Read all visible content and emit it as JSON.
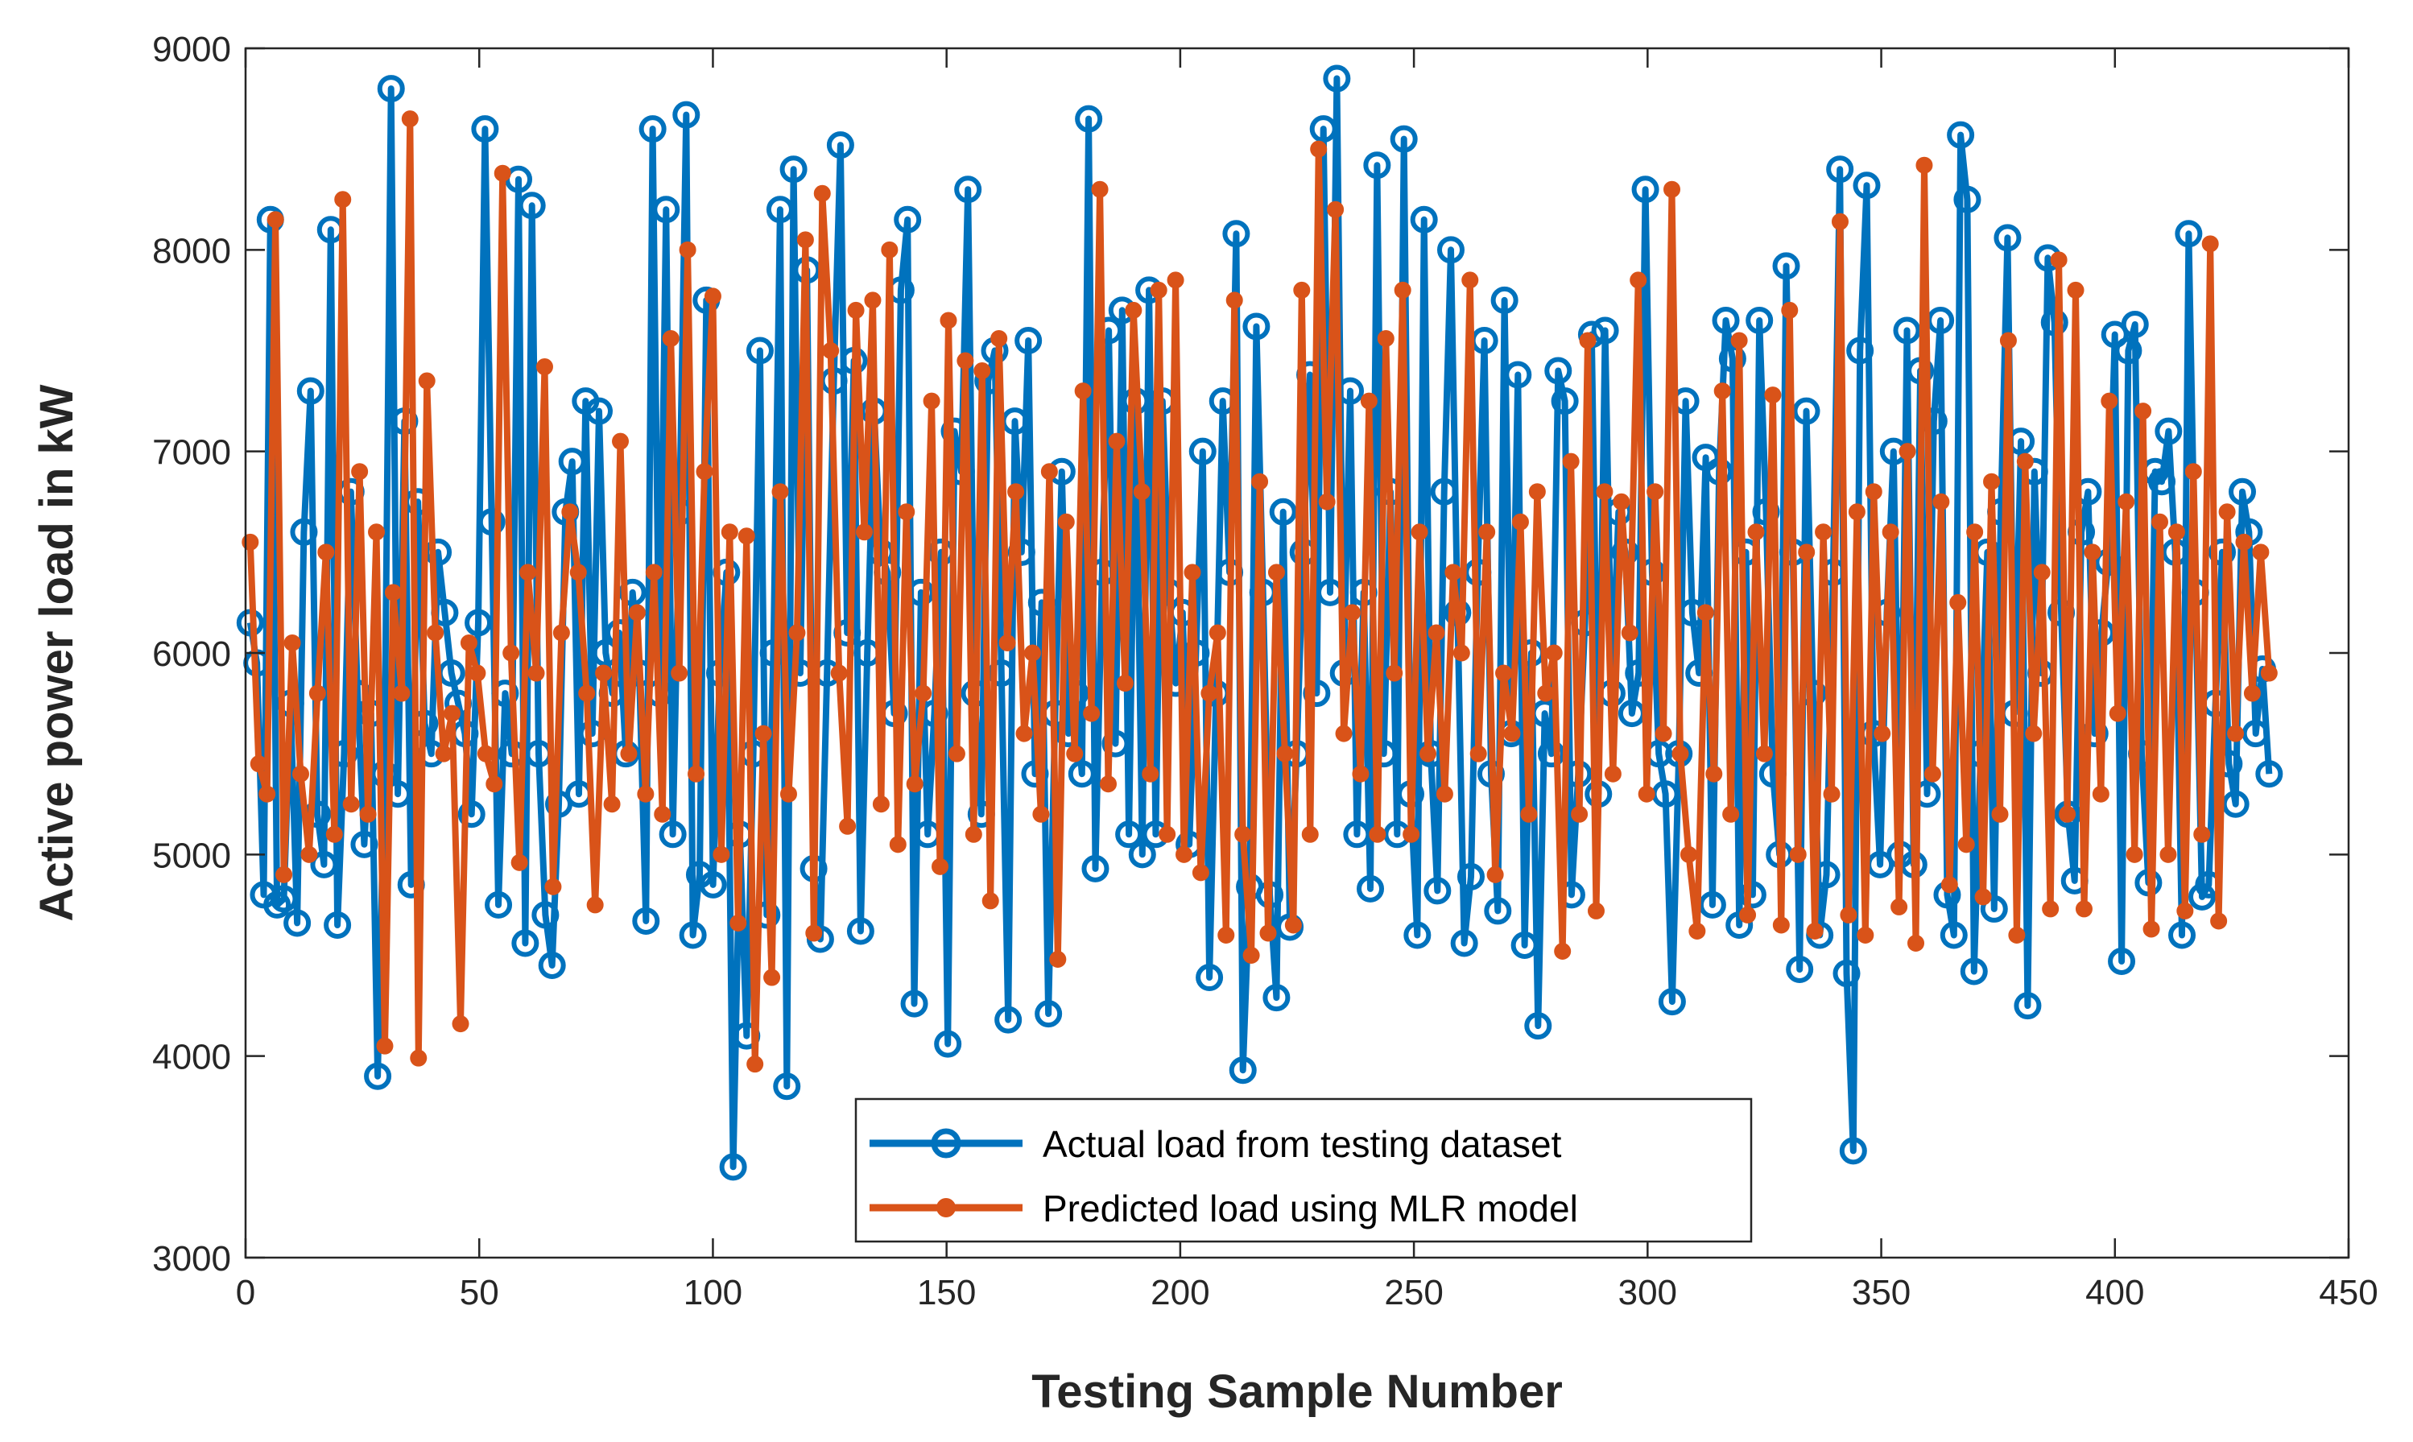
{
  "chart_data": {
    "type": "line",
    "title": "",
    "xlabel": "Testing Sample Number",
    "ylabel": "Active power load in kW",
    "xlim": [
      0,
      450
    ],
    "ylim": [
      3000,
      9000
    ],
    "xticks": [
      0,
      50,
      100,
      150,
      200,
      250,
      300,
      350,
      400,
      450
    ],
    "yticks": [
      3000,
      4000,
      5000,
      6000,
      7000,
      8000,
      9000
    ],
    "grid": false,
    "legend_position": "bottom-center",
    "series": [
      {
        "name": "Actual load from testing dataset",
        "color": "#0072BD",
        "marker": "circle",
        "values": [
          6150,
          5950,
          4800,
          8150,
          4750,
          4780,
          5750,
          4660,
          6600,
          7300,
          5200,
          4950,
          8100,
          4650,
          5500,
          6800,
          5800,
          5050,
          5700,
          3900,
          5400,
          8800,
          5300,
          7150,
          4850,
          6750,
          5650,
          5500,
          6500,
          6200,
          5900,
          5750,
          5600,
          5200,
          6150,
          8600,
          6650,
          4750,
          5800,
          5500,
          8350,
          4560,
          8220,
          5500,
          4700,
          4450,
          5250,
          6700,
          6950,
          5300,
          7250,
          5600,
          7200,
          6000,
          5800,
          6100,
          5500,
          6300,
          5900,
          4670,
          8600,
          5800,
          8200,
          5100,
          6700,
          8670,
          4600,
          4900,
          7750,
          4850,
          5900,
          6400,
          3450,
          5100,
          4100,
          5500,
          7500,
          4700,
          6000,
          8200,
          3850,
          8400,
          5900,
          7900,
          4930,
          4580,
          5900,
          7350,
          8520,
          6100,
          7450,
          4620,
          6000,
          7200,
          6500,
          6400,
          5700,
          7800,
          8150,
          4260,
          6300,
          5100,
          5700,
          6500,
          4060,
          7100,
          6900,
          8300,
          5800,
          5200,
          7350,
          7500,
          5900,
          4180,
          7150,
          6500,
          7550,
          5400,
          6250,
          4210,
          5700,
          6900,
          5600,
          5800,
          5400,
          8650,
          4930,
          6400,
          7600,
          5550,
          7700,
          5100,
          7250,
          5000,
          7800,
          5100,
          7250,
          6300,
          5850,
          6200,
          5050,
          6000,
          7000,
          4390,
          5800,
          7250,
          6400,
          8080,
          3930,
          4840,
          7620,
          6300,
          4800,
          4290,
          6700,
          4640,
          5500,
          6500,
          7380,
          5800,
          8600,
          6300,
          8850,
          5900,
          7300,
          5100,
          6300,
          4830,
          8420,
          5500,
          6800,
          5100,
          8550,
          5300,
          4600,
          8150,
          5500,
          4820,
          6800,
          8000,
          6200,
          4560,
          4890,
          6400,
          7550,
          5400,
          4720,
          7750,
          5600,
          7380,
          4550,
          6000,
          4150,
          5700,
          5500,
          7400,
          7250,
          4800,
          5400,
          6150,
          7580,
          5300,
          7600,
          5800,
          6700,
          6500,
          5700,
          5900,
          8300,
          6400,
          5500,
          5300,
          4270,
          5500,
          7250,
          6200,
          5900,
          6970,
          4750,
          6900,
          7650,
          7460,
          4650,
          6500,
          4800,
          7650,
          6700,
          5400,
          5000,
          7920,
          6500,
          4430,
          7200,
          5800,
          4600,
          4900,
          6400,
          8400,
          4410,
          3530,
          7500,
          8320,
          5600,
          4950,
          6200,
          7000,
          5000,
          7600,
          4950,
          7400,
          5300,
          7150,
          7650,
          4800,
          4600,
          8570,
          8250,
          4420,
          5500,
          6500,
          4730,
          6700,
          8060,
          5700,
          7050,
          4250,
          6900,
          5900,
          7960,
          7640,
          6200,
          5200,
          4870,
          6600,
          6800,
          5600,
          6100,
          6450,
          7580,
          4470,
          7500,
          7630,
          5500,
          4860,
          6900,
          6850,
          7100,
          6500,
          4600,
          8080,
          6300,
          4790,
          4850,
          5750,
          6500,
          5450,
          5250,
          6800,
          6600,
          5600,
          5920,
          5400
        ]
      },
      {
        "name": "Predicted load using MLR model",
        "color": "#D95319",
        "marker": "star",
        "values": [
          6550,
          5450,
          5300,
          8150,
          4900,
          6050,
          5400,
          5000,
          5800,
          6500,
          5100,
          8250,
          5250,
          6900,
          5200,
          6600,
          4050,
          6300,
          5800,
          8650,
          3990,
          7350,
          6100,
          5500,
          5700,
          4160,
          6050,
          5900,
          5500,
          5350,
          8380,
          6000,
          4960,
          6400,
          5900,
          7420,
          4840,
          6100,
          6700,
          6400,
          5800,
          4750,
          5900,
          5250,
          7050,
          5500,
          6200,
          5300,
          6400,
          5200,
          7560,
          5900,
          8000,
          5400,
          6900,
          7770,
          5000,
          6600,
          4660,
          6580,
          3960,
          5600,
          4390,
          6800,
          5300,
          6100,
          8050,
          4610,
          8280,
          7500,
          5900,
          5140,
          7700,
          6600,
          7750,
          5250,
          8000,
          5050,
          6700,
          5350,
          5800,
          7250,
          4940,
          7650,
          5500,
          7450,
          5100,
          7400,
          4770,
          7560,
          6050,
          6800,
          5600,
          6000,
          5200,
          6900,
          4480,
          6650,
          5500,
          7300,
          5700,
          8300,
          5350,
          7050,
          5850,
          7700,
          6800,
          5400,
          7800,
          5100,
          7850,
          5000,
          6400,
          4910,
          5800,
          6100,
          4600,
          7750,
          5100,
          4500,
          6850,
          4610,
          6400,
          5500,
          4650,
          7800,
          5100,
          8500,
          6750,
          8200,
          5600,
          6200,
          5400,
          7250,
          5100,
          7560,
          5900,
          7800,
          5100,
          6600,
          5500,
          6100,
          5300,
          6400,
          6000,
          7850,
          5500,
          6600,
          4900,
          5900,
          5600,
          6650,
          5200,
          6800,
          5800,
          6000,
          4520,
          6950,
          5200,
          7550,
          4720,
          6800,
          5400,
          6750,
          6100,
          7850,
          5300,
          6800,
          5600,
          8300,
          5500,
          5000,
          4620,
          6200,
          5400,
          7300,
          5200,
          7550,
          4700,
          6600,
          5500,
          7280,
          4650,
          7700,
          5000,
          6500,
          4620,
          6600,
          5300,
          8140,
          4700,
          6700,
          4600,
          6800,
          5600,
          6600,
          4740,
          7000,
          4560,
          8420,
          5400,
          6750,
          4850,
          6250,
          5050,
          6600,
          4790,
          6850,
          5200,
          7550,
          4600,
          6950,
          5600,
          6400,
          4730,
          7950,
          5200,
          7800,
          4730,
          6500,
          5300,
          7250,
          5700,
          6750,
          5000,
          7200,
          4630,
          6650,
          5000,
          6600,
          4720,
          6900,
          5100,
          8030,
          4670,
          6700,
          5600,
          6550,
          5800,
          6500,
          5900
        ]
      }
    ]
  }
}
